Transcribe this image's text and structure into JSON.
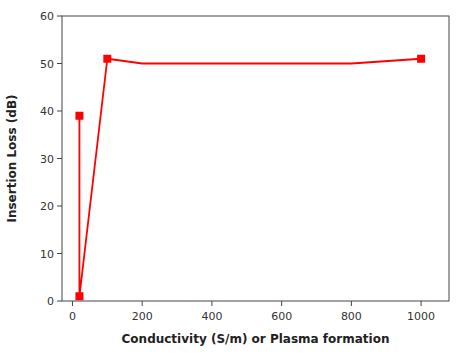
{
  "chart_data": {
    "type": "line",
    "xlabel": "Conductivity (S/m) or Plasma formation",
    "ylabel": "Insertion Loss (dB)",
    "xlim": [
      -30,
      1080
    ],
    "ylim": [
      0,
      60
    ],
    "xticks": [
      0,
      200,
      400,
      600,
      800,
      1000
    ],
    "yticks": [
      0,
      10,
      20,
      30,
      40,
      50,
      60
    ],
    "grid": false,
    "series": [
      {
        "type": "line",
        "x": [
          20,
          20,
          100,
          200,
          400,
          600,
          800,
          1000
        ],
        "values": [
          39,
          1,
          51,
          50,
          50,
          50,
          50,
          51
        ],
        "color": "#FF0000",
        "line_style": "solid"
      },
      {
        "type": "scatter",
        "x": [
          20,
          20,
          100,
          1000
        ],
        "values": [
          39,
          1,
          51,
          51
        ],
        "color": "#FF0000",
        "marker": "square"
      }
    ]
  }
}
